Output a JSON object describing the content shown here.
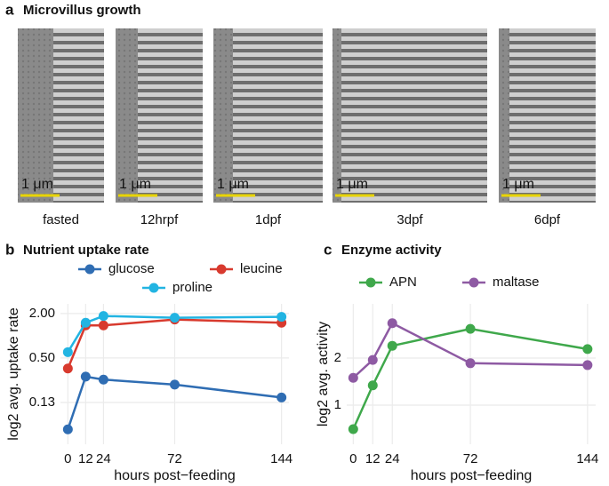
{
  "panel_a": {
    "panel_label": "a",
    "title": "Microvillus growth",
    "images": [
      {
        "scale_label": "1 μm",
        "caption": "fasted"
      },
      {
        "scale_label": "1 μm",
        "caption": "12hrpf"
      },
      {
        "scale_label": "1 μm",
        "caption": "1dpf"
      },
      {
        "scale_label": "1 μm",
        "caption": "3dpf"
      },
      {
        "scale_label": "1 μm",
        "caption": "6dpf"
      }
    ]
  },
  "chart_data": [
    {
      "type": "line",
      "panel_label": "b",
      "title": "Nutrient uptake rate",
      "x_label": "hours post−feeding",
      "y_label": "log2 avg. uptake rate",
      "log_y": 2,
      "grid": true,
      "legend": "top",
      "x": [
        0,
        12,
        24,
        72,
        144
      ],
      "series": [
        {
          "name": "glucose",
          "color": "#2f6db3",
          "values": [
            0.054,
            0.28,
            0.255,
            0.218,
            0.146
          ]
        },
        {
          "name": "leucine",
          "color": "#d83a2e",
          "values": [
            0.36,
            1.38,
            1.38,
            1.66,
            1.5
          ]
        },
        {
          "name": "proline",
          "color": "#22b4e2",
          "values": [
            0.6,
            1.5,
            1.85,
            1.75,
            1.8
          ]
        }
      ],
      "xlim": [
        -5,
        149
      ],
      "xticks": [
        0,
        12,
        24,
        72,
        144
      ],
      "ylim": [
        0.034,
        2.7
      ],
      "yticks": [
        {
          "value": 0.125,
          "label": "0.13"
        },
        {
          "value": 0.5,
          "label": "0.50"
        },
        {
          "value": 2,
          "label": "2.00"
        }
      ]
    },
    {
      "type": "line",
      "panel_label": "c",
      "title": "Enzyme activity",
      "x_label": "hours post−feeding",
      "y_label": "log2 avg. activity",
      "grid": true,
      "legend": "top",
      "x": [
        0,
        12,
        24,
        72,
        144
      ],
      "series": [
        {
          "name": "APN",
          "color": "#3fa84b",
          "values": [
            0.49,
            1.42,
            2.26,
            2.62,
            2.19
          ]
        },
        {
          "name": "maltase",
          "color": "#8e5aa3",
          "values": [
            1.58,
            1.96,
            2.74,
            1.89,
            1.85
          ]
        }
      ],
      "xlim": [
        -4,
        149
      ],
      "xticks": [
        0,
        12,
        24,
        72,
        144
      ],
      "ylim": [
        0.17,
        3.15
      ],
      "yticks": [
        1,
        2
      ]
    }
  ]
}
